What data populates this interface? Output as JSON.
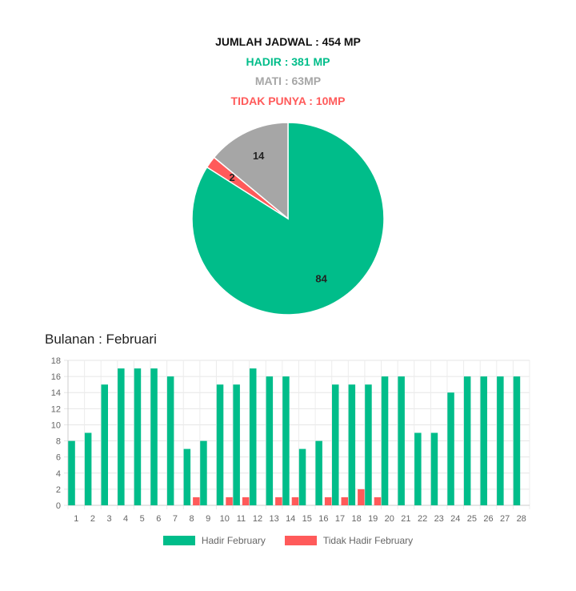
{
  "summary": {
    "total": "JUMLAH JADWAL : 454 MP",
    "hadir": "HADIR : 381 MP",
    "mati": "MATI : 63MP",
    "tidak_punya": "TIDAK PUNYA : 10MP"
  },
  "colors": {
    "hadir": "#00bd8a",
    "mati": "#a6a6a6",
    "tidak": "#ff5a5a"
  },
  "section_title": "Bulanan : Februari",
  "chart_data": [
    {
      "type": "pie",
      "slices": [
        {
          "label": "84",
          "value": 84,
          "color": "#00bd8a"
        },
        {
          "label": "2",
          "value": 2,
          "color": "#ff5a5a"
        },
        {
          "label": "14",
          "value": 14,
          "color": "#a6a6a6"
        }
      ]
    },
    {
      "type": "bar",
      "categories": [
        "1",
        "2",
        "3",
        "4",
        "5",
        "6",
        "7",
        "8",
        "9",
        "10",
        "11",
        "12",
        "13",
        "14",
        "15",
        "16",
        "17",
        "18",
        "19",
        "20",
        "21",
        "22",
        "23",
        "24",
        "25",
        "26",
        "27",
        "28"
      ],
      "series": [
        {
          "name": "Hadir February",
          "color": "#00bd8a",
          "values": [
            8,
            9,
            15,
            17,
            17,
            17,
            16,
            7,
            8,
            15,
            15,
            17,
            16,
            16,
            7,
            8,
            15,
            15,
            15,
            16,
            16,
            9,
            9,
            14,
            16,
            16,
            16,
            16
          ]
        },
        {
          "name": "Tidak Hadir February",
          "color": "#ff5a5a",
          "values": [
            0,
            0,
            0,
            0,
            0,
            0,
            0,
            1,
            0,
            1,
            1,
            0,
            1,
            1,
            0,
            1,
            1,
            2,
            1,
            0,
            0,
            0,
            0,
            0,
            0,
            0,
            0,
            0
          ]
        }
      ],
      "ylim": [
        0,
        18
      ],
      "yticks": [
        "0",
        "2",
        "4",
        "6",
        "8",
        "10",
        "12",
        "14",
        "16",
        "18"
      ],
      "grid": true,
      "legend": "bottom"
    }
  ]
}
